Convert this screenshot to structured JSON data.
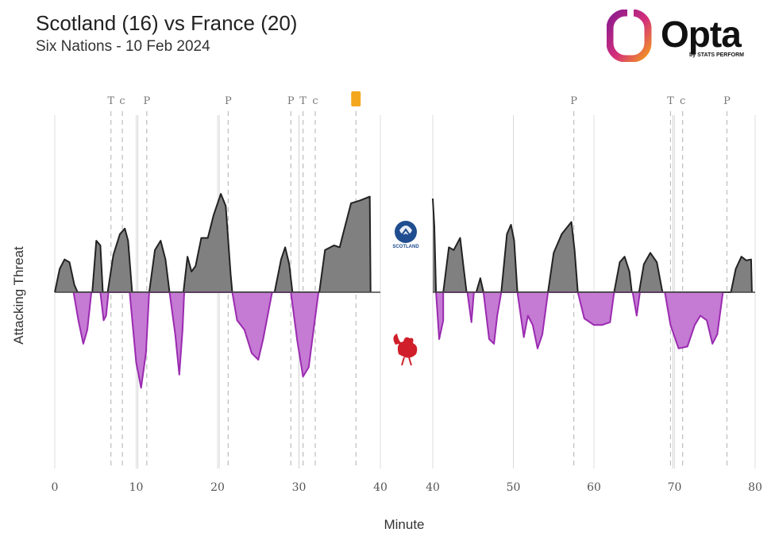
{
  "header": {
    "title": "Scotland (16) vs France (20)",
    "subtitle": "Six Nations - 10 Feb 2024"
  },
  "logo": {
    "word": "Opta",
    "sub": "by STATS PERFORM"
  },
  "team_badges": {
    "home": "SCOTLAND",
    "home_icon": "thistle-crest-icon",
    "away_icon": "rooster-icon"
  },
  "colors": {
    "home": "#808080",
    "away": "#c57ad4",
    "away_line": "#9a2bb0",
    "line": "#222222",
    "card": "#f4a71d"
  },
  "chart_data": {
    "type": "area",
    "xlabel": "Minute",
    "ylabel": "Attacking Threat",
    "grid": "vertical at every 10 minutes",
    "halves": [
      {
        "name": "first half",
        "xlim": [
          0,
          40
        ],
        "ticks": [
          0,
          10,
          20,
          30,
          40
        ]
      },
      {
        "name": "second half",
        "xlim": [
          40,
          80
        ],
        "ticks": [
          40,
          50,
          60,
          70,
          80
        ]
      }
    ],
    "ylim": [
      -1.0,
      1.0
    ],
    "series": [
      {
        "team": "Scotland",
        "direction": "up",
        "first_half": [
          [
            0,
            0
          ],
          [
            0.6,
            0.25
          ],
          [
            1.2,
            0.35
          ],
          [
            1.8,
            0.32
          ],
          [
            2.4,
            0.08
          ],
          [
            2.8,
            0
          ],
          [
            4.6,
            0
          ],
          [
            5.1,
            0.55
          ],
          [
            5.6,
            0.5
          ],
          [
            5.9,
            0
          ],
          [
            6.5,
            0
          ],
          [
            7.2,
            0.4
          ],
          [
            8,
            0.62
          ],
          [
            8.6,
            0.68
          ],
          [
            9,
            0.55
          ],
          [
            9.5,
            0
          ],
          [
            11.6,
            0
          ],
          [
            12.3,
            0.45
          ],
          [
            13,
            0.55
          ],
          [
            13.6,
            0.35
          ],
          [
            14.1,
            0
          ],
          [
            15.8,
            0
          ],
          [
            16.3,
            0.38
          ],
          [
            16.8,
            0.22
          ],
          [
            17.3,
            0.28
          ],
          [
            18,
            0.58
          ],
          [
            18.8,
            0.58
          ],
          [
            19.5,
            0.82
          ],
          [
            20.4,
            1.05
          ],
          [
            21,
            0.92
          ],
          [
            21.6,
            0.2
          ],
          [
            21.8,
            0
          ],
          [
            27,
            0
          ],
          [
            27.8,
            0.35
          ],
          [
            28.3,
            0.48
          ],
          [
            28.8,
            0.3
          ],
          [
            29.2,
            0
          ],
          [
            32.5,
            0
          ],
          [
            33.2,
            0.45
          ],
          [
            34.3,
            0.5
          ],
          [
            35,
            0.48
          ],
          [
            35.5,
            0.65
          ],
          [
            36.4,
            0.95
          ],
          [
            37.5,
            0.98
          ],
          [
            38.7,
            1.02
          ],
          [
            38.8,
            0
          ]
        ],
        "second_half": [
          [
            40,
            1.0
          ],
          [
            40.2,
            0.7
          ],
          [
            40.4,
            0
          ],
          [
            41.3,
            0
          ],
          [
            42,
            0.48
          ],
          [
            42.6,
            0.45
          ],
          [
            43.4,
            0.58
          ],
          [
            43.8,
            0.28
          ],
          [
            44.2,
            0
          ],
          [
            45.4,
            0
          ],
          [
            45.9,
            0.15
          ],
          [
            46.3,
            0
          ],
          [
            48.5,
            0
          ],
          [
            49.2,
            0.62
          ],
          [
            49.7,
            0.72
          ],
          [
            50.1,
            0.55
          ],
          [
            50.5,
            0
          ],
          [
            54.3,
            0
          ],
          [
            55,
            0.42
          ],
          [
            56,
            0.62
          ],
          [
            57.2,
            0.75
          ],
          [
            57.6,
            0.45
          ],
          [
            58,
            0
          ],
          [
            62.5,
            0
          ],
          [
            63.2,
            0.32
          ],
          [
            63.8,
            0.38
          ],
          [
            64.4,
            0.22
          ],
          [
            64.7,
            0
          ],
          [
            65.6,
            0
          ],
          [
            66.2,
            0.3
          ],
          [
            67,
            0.42
          ],
          [
            67.8,
            0.32
          ],
          [
            68.5,
            0
          ],
          [
            77,
            0
          ],
          [
            77.6,
            0.25
          ],
          [
            78.3,
            0.38
          ],
          [
            78.9,
            0.34
          ],
          [
            79.5,
            0.35
          ],
          [
            79.6,
            0
          ]
        ]
      },
      {
        "team": "France",
        "direction": "down",
        "first_half": [
          [
            2.3,
            0
          ],
          [
            2.9,
            -0.3
          ],
          [
            3.5,
            -0.55
          ],
          [
            4,
            -0.4
          ],
          [
            4.5,
            0
          ],
          [
            5.6,
            0
          ],
          [
            6,
            -0.3
          ],
          [
            6.3,
            -0.25
          ],
          [
            6.6,
            0
          ],
          [
            9.2,
            0
          ],
          [
            10,
            -0.75
          ],
          [
            10.6,
            -1.02
          ],
          [
            11.2,
            -0.65
          ],
          [
            11.6,
            0
          ],
          [
            14.1,
            0
          ],
          [
            14.8,
            -0.45
          ],
          [
            15.3,
            -0.88
          ],
          [
            15.7,
            -0.4
          ],
          [
            15.9,
            0
          ],
          [
            21.8,
            0
          ],
          [
            22.4,
            -0.3
          ],
          [
            23.3,
            -0.4
          ],
          [
            24.2,
            -0.65
          ],
          [
            25,
            -0.72
          ],
          [
            25.6,
            -0.5
          ],
          [
            26.7,
            0
          ],
          [
            29,
            0
          ],
          [
            29.8,
            -0.52
          ],
          [
            30.5,
            -0.9
          ],
          [
            31.2,
            -0.8
          ],
          [
            31.8,
            -0.4
          ],
          [
            32.4,
            0
          ]
        ],
        "second_half": [
          [
            40.4,
            0
          ],
          [
            40.8,
            -0.5
          ],
          [
            41.3,
            -0.3
          ],
          [
            41.3,
            0
          ],
          [
            44.3,
            0
          ],
          [
            44.8,
            -0.32
          ],
          [
            45.1,
            0
          ],
          [
            46.3,
            0
          ],
          [
            47,
            -0.5
          ],
          [
            47.6,
            -0.55
          ],
          [
            48,
            -0.25
          ],
          [
            48.5,
            0
          ],
          [
            50.5,
            0
          ],
          [
            51.3,
            -0.48
          ],
          [
            51.8,
            -0.25
          ],
          [
            52.4,
            -0.35
          ],
          [
            53,
            -0.6
          ],
          [
            53.6,
            -0.45
          ],
          [
            54.3,
            0
          ],
          [
            58,
            0
          ],
          [
            58.8,
            -0.28
          ],
          [
            60,
            -0.35
          ],
          [
            61,
            -0.35
          ],
          [
            62,
            -0.32
          ],
          [
            62.5,
            0
          ],
          [
            64.8,
            0
          ],
          [
            65.3,
            -0.25
          ],
          [
            65.7,
            0
          ],
          [
            68.8,
            0
          ],
          [
            69.5,
            -0.35
          ],
          [
            70.5,
            -0.6
          ],
          [
            71.6,
            -0.58
          ],
          [
            72.5,
            -0.35
          ],
          [
            73.2,
            -0.25
          ],
          [
            74,
            -0.3
          ],
          [
            74.7,
            -0.55
          ],
          [
            75.3,
            -0.45
          ],
          [
            76,
            0
          ]
        ]
      }
    ],
    "events": [
      {
        "minute": 6.9,
        "label": "T"
      },
      {
        "minute": 8.3,
        "label": "c"
      },
      {
        "minute": 11.3,
        "label": "P"
      },
      {
        "minute": 21.3,
        "label": "P"
      },
      {
        "minute": 29.0,
        "label": "P"
      },
      {
        "minute": 30.5,
        "label": "T"
      },
      {
        "minute": 32.0,
        "label": "c"
      },
      {
        "minute": 37.0,
        "label": "",
        "marker": "yellow-card"
      },
      {
        "minute": 57.5,
        "label": "P"
      },
      {
        "minute": 69.5,
        "label": "T"
      },
      {
        "minute": 71.0,
        "label": "c"
      },
      {
        "minute": 76.5,
        "label": "P"
      }
    ],
    "event_solid_lines": [
      10.2,
      20.2,
      30.0,
      69.8
    ]
  }
}
